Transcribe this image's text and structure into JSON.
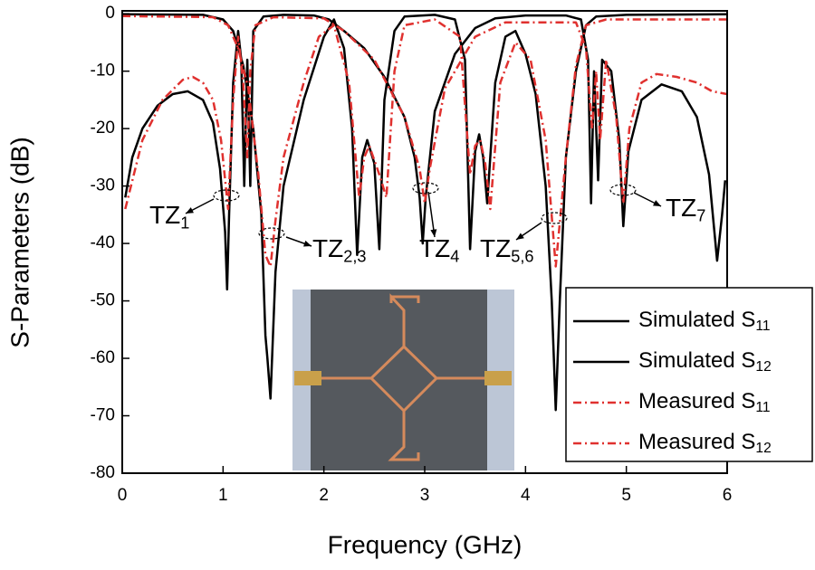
{
  "chart_data": {
    "type": "line",
    "xlabel": "Frequency (GHz)",
    "ylabel": "S-Parameters (dB)",
    "xlim": [
      0,
      6
    ],
    "xticks": [
      0,
      1,
      2,
      3,
      4,
      5,
      6
    ],
    "ylim": [
      -80,
      0.5
    ],
    "yticks": [
      0,
      -10,
      -20,
      -30,
      -40,
      -50,
      -60,
      -70,
      -80
    ],
    "legend": "lower right",
    "series": [
      {
        "name": "Simulated S11",
        "color": "#000000",
        "style": "solid",
        "x": [
          0,
          0.8,
          1.0,
          1.1,
          1.2,
          1.3,
          1.38,
          1.42,
          1.44,
          1.47,
          1.52,
          1.6,
          1.8,
          2.0,
          2.1,
          2.2,
          2.28,
          2.33,
          2.38,
          2.43,
          2.5,
          2.55,
          2.6,
          2.7,
          2.8,
          3.1,
          3.3,
          3.4,
          3.45,
          3.5,
          3.54,
          3.58,
          3.62,
          3.7,
          3.8,
          3.9,
          4.0,
          4.1,
          4.2,
          4.26,
          4.3,
          4.34,
          4.4,
          4.5,
          4.6,
          4.7,
          5.0,
          6.0
        ],
        "values": [
          -0.1,
          -0.2,
          -1,
          -3,
          -9,
          -20,
          -35,
          -56,
          -60,
          -67,
          -45,
          -30,
          -15,
          -4,
          -1,
          -6,
          -20,
          -42,
          -25,
          -22,
          -26,
          -41,
          -15,
          -3,
          -0.5,
          -0.2,
          -1,
          -8,
          -41,
          -24,
          -21,
          -25,
          -33,
          -12,
          -4,
          -3,
          -7,
          -14,
          -30,
          -50,
          -69,
          -50,
          -25,
          -10,
          -2,
          -0.5,
          -0.2,
          -0.1
        ]
      },
      {
        "name": "Simulated S12",
        "color": "#000000",
        "style": "solid",
        "x": [
          0.03,
          0.1,
          0.2,
          0.35,
          0.5,
          0.65,
          0.8,
          0.9,
          0.97,
          1.02,
          1.04,
          1.06,
          1.1,
          1.15,
          1.18,
          1.21,
          1.24,
          1.27,
          1.3,
          1.4,
          1.6,
          1.9,
          2.05,
          2.2,
          2.4,
          2.6,
          2.8,
          2.9,
          2.95,
          2.98,
          3.01,
          3.1,
          3.3,
          3.5,
          3.7,
          4.0,
          4.4,
          4.55,
          4.62,
          4.65,
          4.68,
          4.72,
          4.76,
          4.85,
          4.93,
          4.97,
          5.02,
          5.15,
          5.35,
          5.55,
          5.7,
          5.82,
          5.9,
          5.95,
          5.98
        ],
        "values": [
          -32,
          -25,
          -20,
          -16,
          -14,
          -13.5,
          -15,
          -19,
          -27,
          -38,
          -48,
          -35,
          -12,
          -3,
          -8,
          -30,
          -8,
          -30,
          -3,
          -0.5,
          -0.2,
          -0.3,
          -1,
          -3,
          -6,
          -11,
          -18,
          -25,
          -32,
          -40,
          -32,
          -17,
          -7,
          -2.5,
          -0.8,
          -0.3,
          -0.3,
          -1,
          -8,
          -33,
          -10,
          -29,
          -8,
          -10,
          -22,
          -37,
          -24,
          -15,
          -12.3,
          -13.5,
          -18,
          -28,
          -43,
          -35,
          -29
        ]
      },
      {
        "name": "Measured S11",
        "color": "#e0312f",
        "style": "dashdot",
        "x": [
          0,
          0.9,
          1.05,
          1.15,
          1.25,
          1.35,
          1.42,
          1.47,
          1.52,
          1.6,
          1.8,
          1.95,
          2.1,
          2.25,
          2.35,
          2.4,
          2.45,
          2.55,
          2.62,
          2.7,
          2.8,
          3.1,
          3.35,
          3.45,
          3.5,
          3.55,
          3.6,
          3.65,
          3.75,
          3.9,
          4.05,
          4.2,
          4.3,
          4.4,
          4.5,
          4.6,
          4.8,
          6.0
        ],
        "values": [
          -0.4,
          -0.6,
          -2,
          -6,
          -13,
          -28,
          -42,
          -44,
          -36,
          -25,
          -12,
          -4,
          -2,
          -12,
          -32,
          -25,
          -23,
          -28,
          -32,
          -10,
          -2,
          -1,
          -4,
          -28,
          -23,
          -22,
          -26,
          -34,
          -12,
          -5,
          -8,
          -22,
          -44,
          -25,
          -9,
          -2,
          -1,
          -1
        ]
      },
      {
        "name": "Measured S12",
        "color": "#e0312f",
        "style": "dashdot",
        "x": [
          0.03,
          0.2,
          0.4,
          0.6,
          0.7,
          0.8,
          0.9,
          0.98,
          1.05,
          1.1,
          1.15,
          1.2,
          1.24,
          1.27,
          1.32,
          1.5,
          2.0,
          2.2,
          2.5,
          2.8,
          2.95,
          3.0,
          3.05,
          3.2,
          3.5,
          3.8,
          4.5,
          4.6,
          4.66,
          4.7,
          4.74,
          4.8,
          4.9,
          4.97,
          5.03,
          5.15,
          5.3,
          5.5,
          5.7,
          5.85,
          6.0
        ],
        "values": [
          -34,
          -22,
          -15,
          -11.5,
          -11,
          -12,
          -15,
          -22,
          -34,
          -15,
          -4,
          -12,
          -25,
          -10,
          -2,
          -0.6,
          -0.8,
          -3,
          -8,
          -18,
          -27,
          -33,
          -27,
          -13,
          -4,
          -1.5,
          -1.5,
          -6,
          -20,
          -10,
          -22,
          -8,
          -18,
          -33,
          -20,
          -12,
          -10.5,
          -11,
          -12,
          -13.5,
          -14
        ]
      }
    ],
    "annotations": [
      "TZ1",
      "TZ2,3",
      "TZ4",
      "TZ5,6",
      "TZ7"
    ]
  }
}
